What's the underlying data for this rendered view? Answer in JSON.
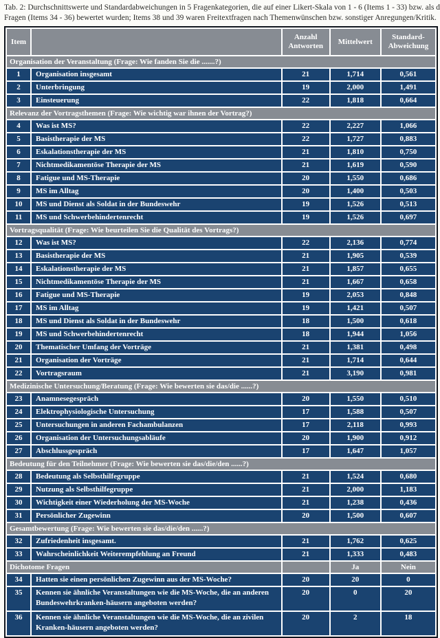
{
  "caption": {
    "line1": "Tab. 2: Durchschnittswerte und Standardabweichungen in 5 Fragenkategorien, die auf einer Likert-Skala von 1 - 6 (Items 1 - 33) bzw. als dichotome",
    "line2": "Fragen (Items 34 - 36) bewertet wurden; Items 38 und 39 waren Freitextfragen nach Themenwünschen bzw. sonstiger Anregungen/Kritik."
  },
  "colors": {
    "row_navy": "#1a4370",
    "header_gray": "#878c93",
    "outer_border": "#10151d",
    "text_white": "#ffffff"
  },
  "table": {
    "columns": {
      "item": "Item",
      "anzahl": "Anzahl\nAntworten",
      "mittelwert": "Mittelwert",
      "std": "Standard-\nAbweichung"
    },
    "sections": [
      {
        "header": "Organisation der Veranstaltung (Frage: Wie fanden Sie die .......?)",
        "type": "likert",
        "rows": [
          {
            "item": "1",
            "label": "Organisation insgesamt",
            "n": "21",
            "mean": "1,714",
            "sd": "0,561"
          },
          {
            "item": "2",
            "label": "Unterbringung",
            "n": "19",
            "mean": "2,000",
            "sd": "1,491"
          },
          {
            "item": "3",
            "label": "Einsteuerung",
            "n": "22",
            "mean": "1,818",
            "sd": "0,664"
          }
        ]
      },
      {
        "header": "Relevanz der Vortragsthemen (Frage: Wie wichtig war ihnen der Vortrag?)",
        "type": "likert",
        "rows": [
          {
            "item": "4",
            "label": "Was ist MS?",
            "n": "22",
            "mean": "2,227",
            "sd": "1,066"
          },
          {
            "item": "5",
            "label": "Basistherapie der MS",
            "n": "22",
            "mean": "1,727",
            "sd": "0,883"
          },
          {
            "item": "6",
            "label": "Eskalationstherapie der MS",
            "n": "21",
            "mean": "1,810",
            "sd": "0,750"
          },
          {
            "item": "7",
            "label": "Nichtmedikamentöse Therapie der MS",
            "n": "21",
            "mean": "1,619",
            "sd": "0,590"
          },
          {
            "item": "8",
            "label": "Fatigue und MS-Therapie",
            "n": "20",
            "mean": "1,550",
            "sd": "0,686"
          },
          {
            "item": "9",
            "label": "MS im Alltag",
            "n": "20",
            "mean": "1,400",
            "sd": "0,503"
          },
          {
            "item": "10",
            "label": "MS und Dienst als Soldat in der Bundeswehr",
            "n": "19",
            "mean": "1,526",
            "sd": "0,513"
          },
          {
            "item": "11",
            "label": "MS und Schwerbehindertenrecht",
            "n": "19",
            "mean": "1,526",
            "sd": "0,697"
          }
        ]
      },
      {
        "header": "Vortragsqualität (Frage: Wie beurteilen Sie die Qualität des Vortrags?)",
        "type": "likert",
        "rows": [
          {
            "item": "12",
            "label": "Was ist MS?",
            "n": "22",
            "mean": "2,136",
            "sd": "0,774"
          },
          {
            "item": "13",
            "label": "Basistherapie der MS",
            "n": "21",
            "mean": "1,905",
            "sd": "0,539"
          },
          {
            "item": "14",
            "label": "Eskalationstherapie der MS",
            "n": "21",
            "mean": "1,857",
            "sd": "0,655"
          },
          {
            "item": "15",
            "label": "Nichtmedikamentöse Therapie der MS",
            "n": "21",
            "mean": "1,667",
            "sd": "0,658"
          },
          {
            "item": "16",
            "label": "Fatigue und MS-Therapie",
            "n": "19",
            "mean": "2,053",
            "sd": "0,848"
          },
          {
            "item": "17",
            "label": "MS im Alltag",
            "n": "19",
            "mean": "1,421",
            "sd": "0,507"
          },
          {
            "item": "18",
            "label": "MS und Dienst als Soldat in der Bundeswehr",
            "n": "18",
            "mean": "1,500",
            "sd": "0,618"
          },
          {
            "item": "19",
            "label": "MS und Schwerbehindertenrecht",
            "n": "18",
            "mean": "1,944",
            "sd": "1,056"
          },
          {
            "item": "20",
            "label": "Thematischer Umfang der Vorträge",
            "n": "21",
            "mean": "1,381",
            "sd": "0,498"
          },
          {
            "item": "21",
            "label": "Organisation der Vorträge",
            "n": "21",
            "mean": "1,714",
            "sd": "0,644"
          },
          {
            "item": "22",
            "label": "Vortragsraum",
            "n": "21",
            "mean": "3,190",
            "sd": "0,981"
          }
        ]
      },
      {
        "header": "Medizinische Untersuchung/Beratung (Frage: Wie bewerten sie das/die ......?)",
        "type": "likert",
        "rows": [
          {
            "item": "23",
            "label": "Anamnesegespräch",
            "n": "20",
            "mean": "1,550",
            "sd": "0,510"
          },
          {
            "item": "24",
            "label": "Elektrophysiologische Untersuchung",
            "n": "17",
            "mean": "1,588",
            "sd": "0,507"
          },
          {
            "item": "25",
            "label": "Untersuchungen in anderen Fachambulanzen",
            "n": "17",
            "mean": "2,118",
            "sd": "0,993"
          },
          {
            "item": "26",
            "label": "Organisation der Untersuchungsabläufe",
            "n": "20",
            "mean": "1,900",
            "sd": "0,912"
          },
          {
            "item": "27",
            "label": "Abschlussgespräch",
            "n": "17",
            "mean": "1,647",
            "sd": "1,057"
          }
        ]
      },
      {
        "header": "Bedeutung für den Teilnehmer (Frage: Wie bewerten sie das/die/den ......?)",
        "type": "likert",
        "rows": [
          {
            "item": "28",
            "label": "Bedeutung als Selbsthilfegruppe",
            "n": "21",
            "mean": "1,524",
            "sd": "0,680"
          },
          {
            "item": "29",
            "label": "Nutzung als Selbsthilfegruppe",
            "n": "21",
            "mean": "2,000",
            "sd": "1,183"
          },
          {
            "item": "30",
            "label": "Wichtigkeit einer Wiederholung der MS-Woche",
            "n": "21",
            "mean": "1,238",
            "sd": "0,436"
          },
          {
            "item": "31",
            "label": "Persönlicher Zugewinn",
            "n": "20",
            "mean": "1,500",
            "sd": "0,607"
          }
        ]
      },
      {
        "header": "Gesamtbewertung (Frage: Wie bewerten sie das/die/den ......?)",
        "type": "likert",
        "rows": [
          {
            "item": "32",
            "label": "Zufriedenheit insgesamt.",
            "n": "21",
            "mean": "1,762",
            "sd": "0,625"
          },
          {
            "item": "33",
            "label": "Wahrscheinlichkeit Weiterempfehlung an Freund",
            "n": "21",
            "mean": "1,333",
            "sd": "0,483"
          }
        ]
      },
      {
        "header": "Dichotome Fragen",
        "type": "dichotom",
        "ja_label": "Ja",
        "nein_label": "Nein",
        "rows": [
          {
            "item": "34",
            "label": "Hatten sie einen persönlichen Zugewinn aus der MS-Woche?",
            "n": "20",
            "ja": "20",
            "nein": "0",
            "tall": false
          },
          {
            "item": "35",
            "label": "Kennen sie ähnliche Veranstaltungen wie die MS-Woche, die an anderen Bundeswehrkranken-häusern angeboten werden?",
            "n": "20",
            "ja": "0",
            "nein": "20",
            "tall": true
          },
          {
            "item": "36",
            "label": "Kennen sie ähnliche Veranstaltungen wie die MS-Woche, die an zivilen Kranken-häusern angeboten werden?",
            "n": "20",
            "ja": "2",
            "nein": "18",
            "tall": true
          }
        ]
      }
    ]
  }
}
